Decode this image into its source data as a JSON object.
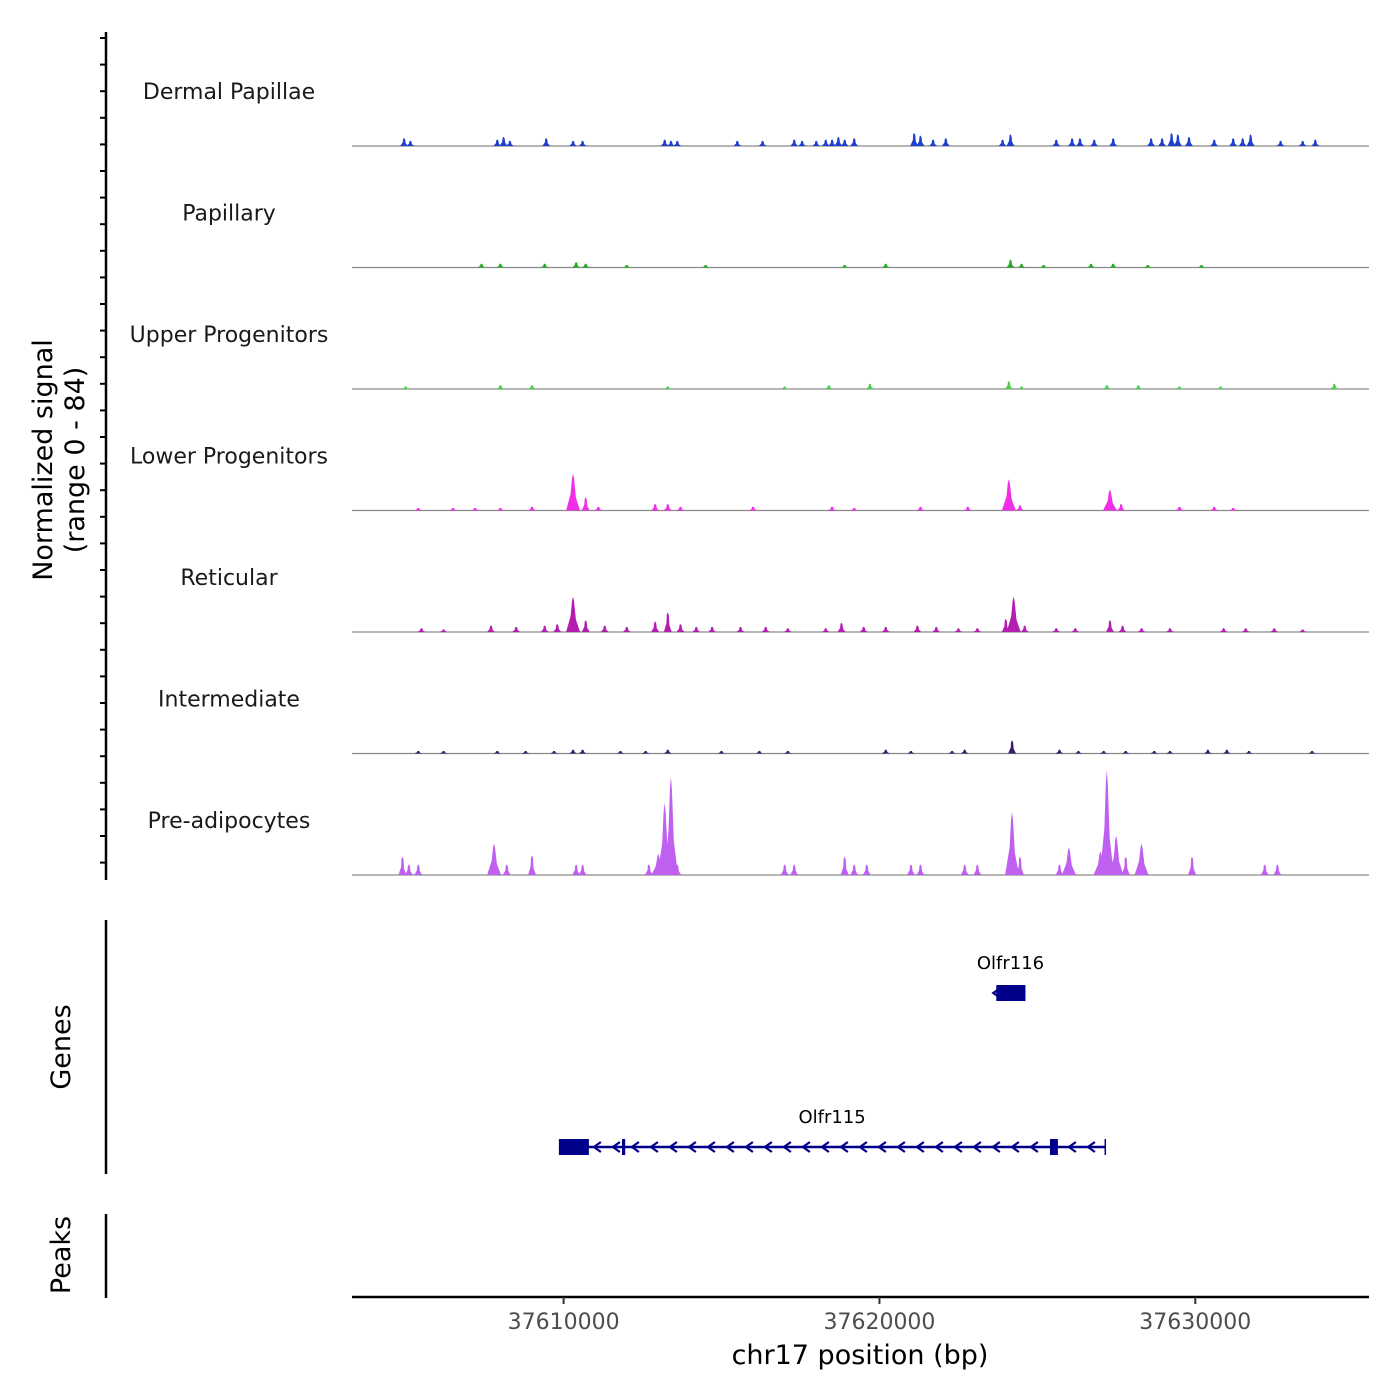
{
  "chart_data": {
    "type": "area",
    "title": "",
    "region": {
      "chromosome": "chr17",
      "start": 37603300,
      "end": 37635500
    },
    "ylabel": "Normalized signal",
    "ylabel_range": "(range 0 - 84)",
    "ylim": [
      0,
      84
    ],
    "xlabel": "chr17 position (bp)",
    "x_ticks": [
      37610000,
      37620000,
      37630000
    ],
    "x_tick_labels": [
      "37610000",
      "37620000",
      "37630000"
    ],
    "tracks": [
      {
        "name": "Dermal Papillae",
        "color": "#1f3fcf",
        "peaks": [
          [
            37604950,
            6
          ],
          [
            37605150,
            4
          ],
          [
            37607900,
            5
          ],
          [
            37608100,
            7
          ],
          [
            37608300,
            4
          ],
          [
            37609450,
            6
          ],
          [
            37610300,
            4
          ],
          [
            37610600,
            4
          ],
          [
            37613200,
            5
          ],
          [
            37613400,
            4
          ],
          [
            37613600,
            4
          ],
          [
            37615500,
            4
          ],
          [
            37616300,
            4
          ],
          [
            37617300,
            5
          ],
          [
            37617550,
            4
          ],
          [
            37618000,
            4
          ],
          [
            37618300,
            5
          ],
          [
            37618500,
            5
          ],
          [
            37618700,
            7
          ],
          [
            37618900,
            5
          ],
          [
            37619200,
            6
          ],
          [
            37621100,
            10
          ],
          [
            37621300,
            8
          ],
          [
            37621700,
            5
          ],
          [
            37622100,
            6
          ],
          [
            37623900,
            5
          ],
          [
            37624150,
            9
          ],
          [
            37625600,
            5
          ],
          [
            37626100,
            6
          ],
          [
            37626350,
            6
          ],
          [
            37626800,
            5
          ],
          [
            37627400,
            6
          ],
          [
            37628600,
            6
          ],
          [
            37628950,
            6
          ],
          [
            37629250,
            10
          ],
          [
            37629450,
            9
          ],
          [
            37629800,
            7
          ],
          [
            37630600,
            5
          ],
          [
            37631200,
            6
          ],
          [
            37631500,
            6
          ],
          [
            37631750,
            9
          ],
          [
            37632700,
            4
          ],
          [
            37633400,
            4
          ],
          [
            37633800,
            5
          ]
        ]
      },
      {
        "name": "Papillary",
        "color": "#22aa22",
        "peaks": [
          [
            37607400,
            3
          ],
          [
            37608000,
            3
          ],
          [
            37609400,
            3
          ],
          [
            37610400,
            4
          ],
          [
            37610700,
            3
          ],
          [
            37612000,
            2
          ],
          [
            37614500,
            2
          ],
          [
            37618900,
            2
          ],
          [
            37620200,
            3
          ],
          [
            37624150,
            6
          ],
          [
            37624500,
            3
          ],
          [
            37625200,
            2
          ],
          [
            37626700,
            3
          ],
          [
            37627400,
            3
          ],
          [
            37628500,
            2
          ],
          [
            37630200,
            2
          ]
        ]
      },
      {
        "name": "Upper Progenitors",
        "color": "#4ccf4c",
        "peaks": [
          [
            37605000,
            2
          ],
          [
            37608000,
            3
          ],
          [
            37609000,
            3
          ],
          [
            37613300,
            2
          ],
          [
            37617000,
            2
          ],
          [
            37618400,
            3
          ],
          [
            37619700,
            4
          ],
          [
            37624100,
            6
          ],
          [
            37624500,
            2
          ],
          [
            37627200,
            3
          ],
          [
            37628200,
            3
          ],
          [
            37629500,
            2
          ],
          [
            37630800,
            2
          ],
          [
            37634400,
            4
          ]
        ]
      },
      {
        "name": "Lower Progenitors",
        "color": "#f02ee8",
        "peaks": [
          [
            37605400,
            2
          ],
          [
            37606500,
            2
          ],
          [
            37607200,
            2
          ],
          [
            37608000,
            2
          ],
          [
            37609000,
            3
          ],
          [
            37610300,
            28
          ],
          [
            37610700,
            10
          ],
          [
            37611100,
            3
          ],
          [
            37612900,
            5
          ],
          [
            37613300,
            5
          ],
          [
            37613700,
            3
          ],
          [
            37616000,
            3
          ],
          [
            37618500,
            3
          ],
          [
            37619200,
            2
          ],
          [
            37621300,
            3
          ],
          [
            37622800,
            3
          ],
          [
            37624100,
            24
          ],
          [
            37624450,
            4
          ],
          [
            37627300,
            16
          ],
          [
            37627650,
            5
          ],
          [
            37629500,
            3
          ],
          [
            37630600,
            3
          ],
          [
            37631200,
            2
          ]
        ]
      },
      {
        "name": "Reticular",
        "color": "#b41eb0",
        "peaks": [
          [
            37605500,
            3
          ],
          [
            37606200,
            2
          ],
          [
            37607700,
            5
          ],
          [
            37608500,
            4
          ],
          [
            37609400,
            5
          ],
          [
            37609800,
            6
          ],
          [
            37610300,
            27
          ],
          [
            37610700,
            9
          ],
          [
            37611300,
            5
          ],
          [
            37612000,
            4
          ],
          [
            37612900,
            8
          ],
          [
            37613300,
            15
          ],
          [
            37613700,
            6
          ],
          [
            37614200,
            4
          ],
          [
            37614700,
            4
          ],
          [
            37615600,
            4
          ],
          [
            37616400,
            4
          ],
          [
            37617100,
            3
          ],
          [
            37618300,
            3
          ],
          [
            37618800,
            7
          ],
          [
            37619500,
            4
          ],
          [
            37620200,
            4
          ],
          [
            37621200,
            5
          ],
          [
            37621800,
            4
          ],
          [
            37622500,
            3
          ],
          [
            37623100,
            3
          ],
          [
            37624000,
            10
          ],
          [
            37624250,
            27
          ],
          [
            37624600,
            5
          ],
          [
            37625600,
            3
          ],
          [
            37626200,
            3
          ],
          [
            37627300,
            9
          ],
          [
            37627700,
            5
          ],
          [
            37628300,
            3
          ],
          [
            37629200,
            3
          ],
          [
            37630900,
            3
          ],
          [
            37631600,
            3
          ],
          [
            37632500,
            3
          ],
          [
            37633400,
            2
          ]
        ]
      },
      {
        "name": "Intermediate",
        "color": "#3a1a6a",
        "peaks": [
          [
            37605400,
            2
          ],
          [
            37606200,
            2
          ],
          [
            37607900,
            2
          ],
          [
            37608800,
            2
          ],
          [
            37609700,
            2
          ],
          [
            37610300,
            3
          ],
          [
            37610600,
            3
          ],
          [
            37611800,
            2
          ],
          [
            37612600,
            2
          ],
          [
            37613300,
            3
          ],
          [
            37615000,
            2
          ],
          [
            37616200,
            2
          ],
          [
            37617100,
            2
          ],
          [
            37620200,
            3
          ],
          [
            37621000,
            2
          ],
          [
            37622300,
            2
          ],
          [
            37622700,
            3
          ],
          [
            37624200,
            10
          ],
          [
            37625700,
            3
          ],
          [
            37626300,
            2
          ],
          [
            37627100,
            2
          ],
          [
            37627800,
            2
          ],
          [
            37628700,
            2
          ],
          [
            37629200,
            2
          ],
          [
            37630400,
            3
          ],
          [
            37631000,
            3
          ],
          [
            37631700,
            2
          ],
          [
            37633700,
            2
          ]
        ]
      },
      {
        "name": "Pre-adipocytes",
        "color": "#c060f0",
        "peaks": [
          [
            37604900,
            14
          ],
          [
            37605100,
            8
          ],
          [
            37605400,
            8
          ],
          [
            37607800,
            24
          ],
          [
            37608200,
            8
          ],
          [
            37609000,
            15
          ],
          [
            37610400,
            8
          ],
          [
            37610600,
            8
          ],
          [
            37612700,
            8
          ],
          [
            37613000,
            16
          ],
          [
            37613200,
            55
          ],
          [
            37613400,
            75
          ],
          [
            37613600,
            8
          ],
          [
            37617000,
            8
          ],
          [
            37617300,
            8
          ],
          [
            37618900,
            14
          ],
          [
            37619200,
            8
          ],
          [
            37619600,
            8
          ],
          [
            37621000,
            8
          ],
          [
            37621300,
            8
          ],
          [
            37622700,
            8
          ],
          [
            37623100,
            8
          ],
          [
            37624200,
            48
          ],
          [
            37624450,
            14
          ],
          [
            37625700,
            8
          ],
          [
            37626000,
            21
          ],
          [
            37627000,
            18
          ],
          [
            37627200,
            80
          ],
          [
            37627500,
            30
          ],
          [
            37627800,
            14
          ],
          [
            37628300,
            24
          ],
          [
            37629900,
            14
          ],
          [
            37632200,
            8
          ],
          [
            37632600,
            8
          ]
        ]
      }
    ],
    "genes": [
      {
        "name": "Olfr116",
        "start": 37623700,
        "end": 37624600,
        "strand": "-",
        "exons": [
          [
            37623700,
            37624600
          ]
        ]
      },
      {
        "name": "Olfr115",
        "start": 37609850,
        "end": 37627150,
        "strand": "-",
        "exons": [
          [
            37609850,
            37610800
          ],
          [
            37611850,
            37611950
          ],
          [
            37625400,
            37625650
          ]
        ]
      }
    ],
    "panels": {
      "signal": "Normalized signal\n(range 0 - 84)",
      "genes": "Genes",
      "peaks": "Peaks"
    }
  }
}
